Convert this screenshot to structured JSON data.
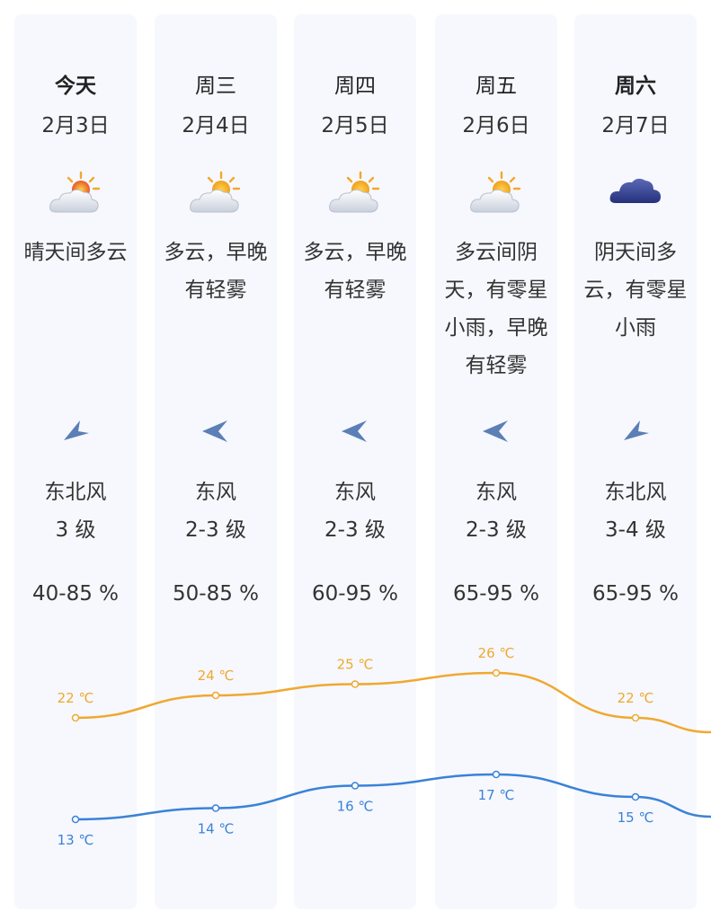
{
  "days": [
    {
      "day": "今天",
      "bold": true,
      "date": "2月3日",
      "icon": "partly-sunny-icon",
      "desc": "晴天间多云",
      "wind_dir": "东北风",
      "wind_level": "3 级",
      "humidity": "40-85 %",
      "high": "22 ℃",
      "low": "13 ℃"
    },
    {
      "day": "周三",
      "bold": false,
      "date": "2月4日",
      "icon": "sun-cloud-icon",
      "desc": "多云，早晚有轻雾",
      "wind_dir": "东风",
      "wind_level": "2-3 级",
      "humidity": "50-85 %",
      "high": "24 ℃",
      "low": "14 ℃"
    },
    {
      "day": "周四",
      "bold": false,
      "date": "2月5日",
      "icon": "sun-cloud-icon",
      "desc": "多云，早晚有轻雾",
      "wind_dir": "东风",
      "wind_level": "2-3 级",
      "humidity": "60-95 %",
      "high": "25 ℃",
      "low": "16 ℃"
    },
    {
      "day": "周五",
      "bold": false,
      "date": "2月6日",
      "icon": "sun-cloud-icon",
      "desc": "多云间阴天，有零星小雨，早晚有轻雾",
      "wind_dir": "东风",
      "wind_level": "2-3 级",
      "humidity": "65-95 %",
      "high": "26 ℃",
      "low": "17 ℃"
    },
    {
      "day": "周六",
      "bold": true,
      "date": "2月7日",
      "icon": "dark-cloud-icon",
      "desc": "阴天间多云，有零星小雨",
      "wind_dir": "东北风",
      "wind_level": "3-4 级",
      "humidity": "65-95 %",
      "high": "22 ℃",
      "low": "15 ℃"
    }
  ],
  "colors": {
    "high_line": "#f0a830",
    "low_line": "#3a82d8"
  },
  "chart_data": {
    "type": "line",
    "categories": [
      "今天",
      "周三",
      "周四",
      "周五",
      "周六"
    ],
    "series": [
      {
        "values": [
          22,
          24,
          25,
          26,
          22
        ]
      },
      {
        "values": [
          13,
          14,
          16,
          17,
          15
        ]
      }
    ]
  }
}
